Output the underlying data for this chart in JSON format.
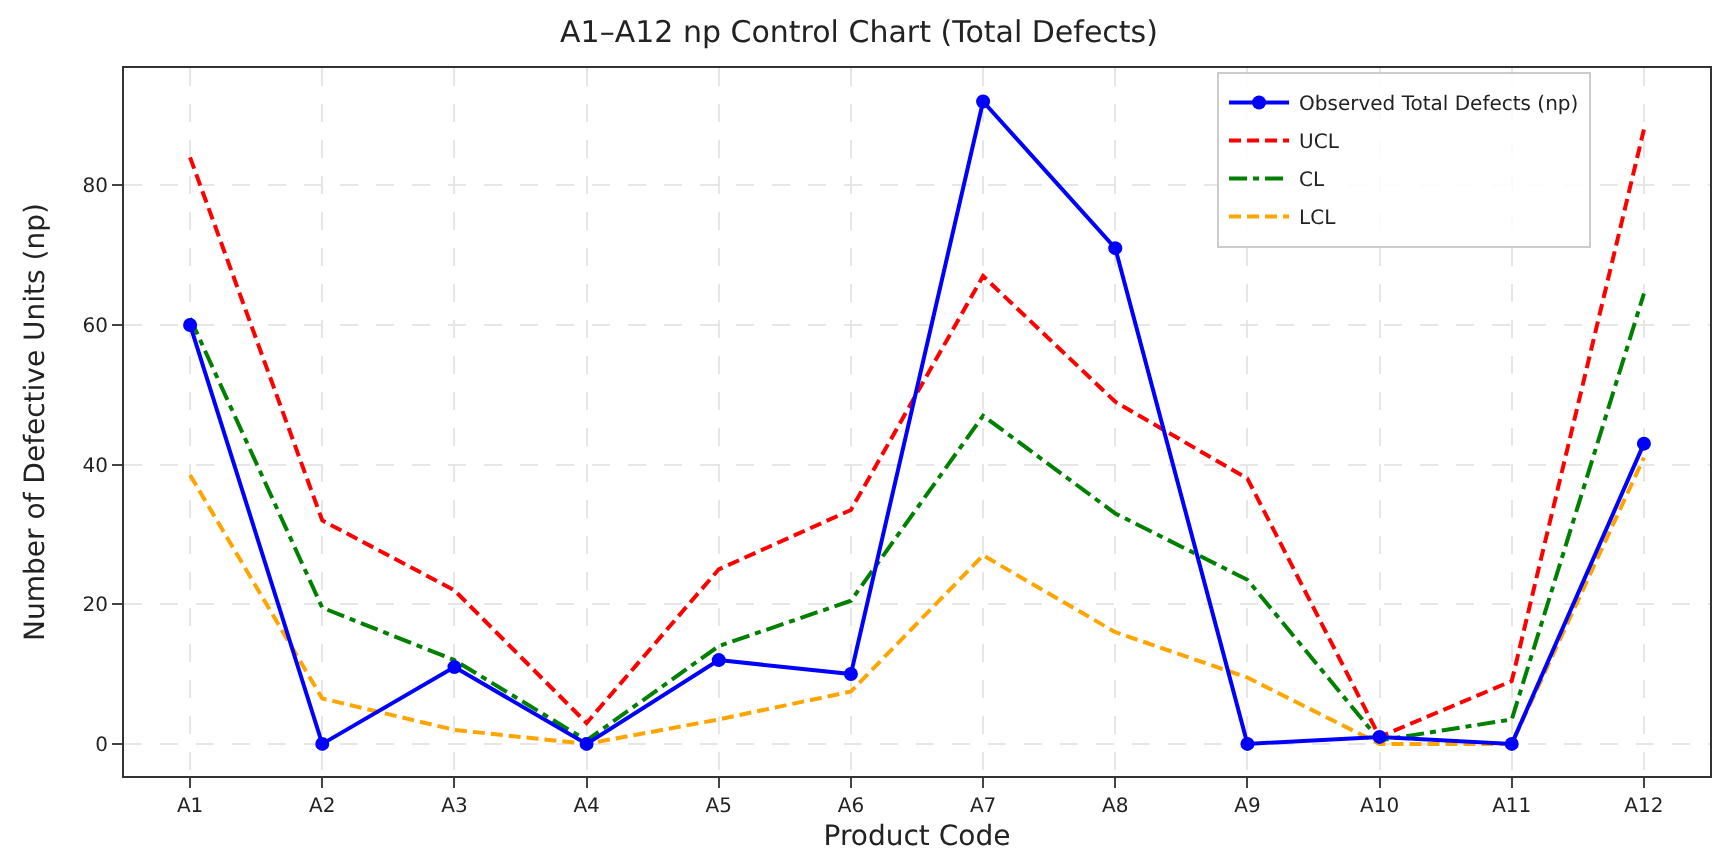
{
  "chart_data": {
    "type": "line",
    "title": "A1–A12 np Control Chart (Total Defects)",
    "xlabel": "Product Code",
    "ylabel": "Number of Defective Units (np)",
    "categories": [
      "A1",
      "A2",
      "A3",
      "A4",
      "A5",
      "A6",
      "A7",
      "A8",
      "A9",
      "A10",
      "A11",
      "A12"
    ],
    "series": [
      {
        "name": "Observed Total Defects (np)",
        "color": "#0000ff",
        "marker": "circle",
        "line_style": "solid",
        "values": [
          60,
          0,
          11,
          0,
          12,
          10,
          92,
          71,
          0,
          1,
          0,
          43
        ]
      },
      {
        "name": "UCL",
        "color": "#ff0000",
        "marker": "none",
        "line_style": "dashed",
        "values": [
          84,
          32,
          22,
          3,
          25,
          33.5,
          67,
          49,
          38,
          1,
          9,
          88
        ]
      },
      {
        "name": "CL",
        "color": "#008000",
        "marker": "none",
        "line_style": "dashdot",
        "values": [
          61,
          19.5,
          12,
          0.5,
          14,
          20.5,
          47,
          33,
          23.5,
          0.5,
          3.5,
          64.5
        ]
      },
      {
        "name": "LCL",
        "color": "#ffa500",
        "marker": "none",
        "line_style": "dashed",
        "values": [
          38.5,
          6.5,
          2,
          0,
          3.5,
          7.5,
          27,
          16,
          9.5,
          0,
          0,
          41
        ]
      }
    ],
    "ylim": [
      -4.6,
      96.8
    ],
    "yticks": [
      0,
      20,
      40,
      60,
      80
    ],
    "grid": true,
    "legend": "top right"
  }
}
